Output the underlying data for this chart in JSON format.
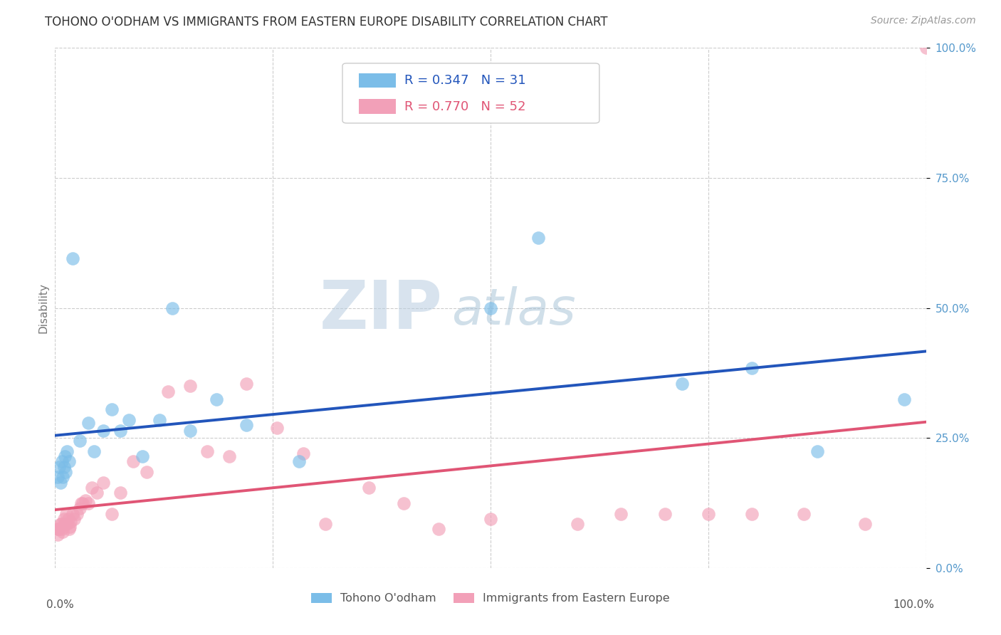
{
  "title": "TOHONO O'ODHAM VS IMMIGRANTS FROM EASTERN EUROPE DISABILITY CORRELATION CHART",
  "source": "Source: ZipAtlas.com",
  "ylabel": "Disability",
  "r1": 0.347,
  "n1": 31,
  "r2": 0.77,
  "n2": 52,
  "color_blue": "#7BBDE8",
  "color_pink": "#F2A0B8",
  "line_color_blue": "#2255BB",
  "line_color_pink": "#E05575",
  "legend_label1": "Tohono O'odham",
  "legend_label2": "Immigrants from Eastern Europe",
  "blue_x": [
    0.003,
    0.005,
    0.006,
    0.008,
    0.009,
    0.01,
    0.011,
    0.012,
    0.014,
    0.016,
    0.02,
    0.028,
    0.038,
    0.045,
    0.055,
    0.065,
    0.075,
    0.085,
    0.1,
    0.12,
    0.135,
    0.155,
    0.185,
    0.22,
    0.28,
    0.5,
    0.555,
    0.72,
    0.8,
    0.875,
    0.975
  ],
  "blue_y": [
    0.175,
    0.195,
    0.165,
    0.205,
    0.175,
    0.195,
    0.215,
    0.185,
    0.225,
    0.205,
    0.595,
    0.245,
    0.28,
    0.225,
    0.265,
    0.305,
    0.265,
    0.285,
    0.215,
    0.285,
    0.5,
    0.265,
    0.325,
    0.275,
    0.205,
    0.5,
    0.635,
    0.355,
    0.385,
    0.225,
    0.325
  ],
  "pink_x": [
    0.002,
    0.003,
    0.004,
    0.005,
    0.006,
    0.007,
    0.008,
    0.009,
    0.01,
    0.011,
    0.012,
    0.013,
    0.014,
    0.015,
    0.016,
    0.017,
    0.018,
    0.02,
    0.022,
    0.025,
    0.028,
    0.03,
    0.032,
    0.035,
    0.038,
    0.042,
    0.048,
    0.055,
    0.065,
    0.075,
    0.09,
    0.105,
    0.13,
    0.155,
    0.175,
    0.2,
    0.22,
    0.255,
    0.285,
    0.31,
    0.36,
    0.4,
    0.44,
    0.5,
    0.6,
    0.65,
    0.7,
    0.75,
    0.8,
    0.86,
    0.93,
    1.0
  ],
  "pink_y": [
    0.075,
    0.065,
    0.075,
    0.075,
    0.085,
    0.085,
    0.075,
    0.07,
    0.095,
    0.085,
    0.085,
    0.105,
    0.085,
    0.095,
    0.075,
    0.08,
    0.09,
    0.105,
    0.095,
    0.105,
    0.115,
    0.125,
    0.125,
    0.13,
    0.125,
    0.155,
    0.145,
    0.165,
    0.105,
    0.145,
    0.205,
    0.185,
    0.34,
    0.35,
    0.225,
    0.215,
    0.355,
    0.27,
    0.22,
    0.085,
    0.155,
    0.125,
    0.075,
    0.095,
    0.085,
    0.105,
    0.105,
    0.105,
    0.105,
    0.105,
    0.085,
    1.0
  ],
  "background": "#FFFFFF"
}
